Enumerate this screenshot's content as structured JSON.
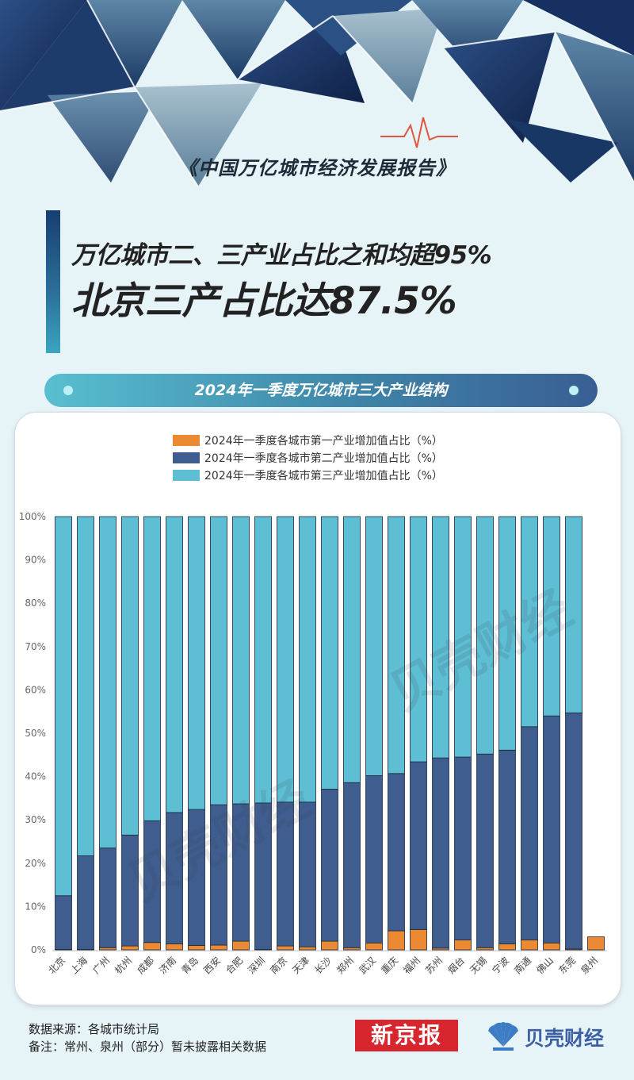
{
  "report_title": "《中国万亿城市经济发展报告》",
  "headline_line1": "万亿城市二、三产业占比之和均超95%",
  "headline_line2": "北京三产占比达87.5%",
  "section_pill": "2024年一季度万亿城市三大产业结构",
  "watermark": "贝壳财经",
  "source_note": "数据来源：各城市统计局",
  "remark_note": "备注：常州、泉州（部分）暂未披露相关数据",
  "logo_xjb": "新京报",
  "logo_bk": "贝壳财经",
  "colors": {
    "primary": "#ec8a33",
    "secondary": "#3f5e8f",
    "tertiary": "#5ebed4",
    "pill_start": "#58bfd0",
    "pill_end": "#395e93"
  },
  "chart_data": {
    "type": "bar",
    "stacked": true,
    "categories": [
      "北京",
      "上海",
      "广州",
      "杭州",
      "成都",
      "济南",
      "青岛",
      "西安",
      "合肥",
      "深圳",
      "南京",
      "天津",
      "长沙",
      "郑州",
      "武汉",
      "重庆",
      "福州",
      "苏州",
      "烟台",
      "无锡",
      "宁波",
      "南通",
      "佛山",
      "东莞",
      "泉州"
    ],
    "series": [
      {
        "name": "2024年一季度各城市第一产业增加值占比（%）",
        "color": "#ec8a33",
        "values": [
          0.1,
          0.1,
          0.5,
          0.9,
          1.7,
          1.4,
          1.0,
          1.1,
          2.0,
          0.1,
          0.9,
          0.7,
          2.0,
          0.5,
          1.6,
          4.4,
          4.7,
          0.4,
          2.3,
          0.5,
          1.4,
          2.3,
          1.6,
          0.2,
          3.0
        ]
      },
      {
        "name": "2024年一季度各城市第二产业增加值占比（%）",
        "color": "#3f5e8f",
        "values": [
          12.4,
          21.6,
          23.0,
          25.6,
          28.1,
          30.3,
          31.4,
          32.4,
          31.7,
          33.8,
          33.2,
          33.4,
          35.1,
          38.1,
          38.6,
          36.3,
          38.7,
          43.9,
          42.2,
          44.7,
          44.7,
          49.2,
          52.4,
          54.5,
          null
        ]
      },
      {
        "name": "2024年一季度各城市第三产业增加值占比（%）",
        "color": "#5ebed4",
        "values": [
          87.5,
          78.3,
          76.5,
          73.5,
          70.2,
          68.3,
          67.6,
          66.5,
          66.3,
          66.1,
          65.9,
          65.9,
          62.9,
          61.4,
          59.8,
          59.3,
          56.6,
          55.7,
          55.5,
          54.8,
          53.9,
          48.5,
          46.0,
          45.3,
          null
        ]
      }
    ],
    "ylim": [
      0,
      100
    ],
    "yticks": [
      "0%",
      "10%",
      "20%",
      "30%",
      "40%",
      "50%",
      "60%",
      "70%",
      "80%",
      "90%",
      "100%"
    ],
    "grid": false,
    "legend_position": "top"
  }
}
